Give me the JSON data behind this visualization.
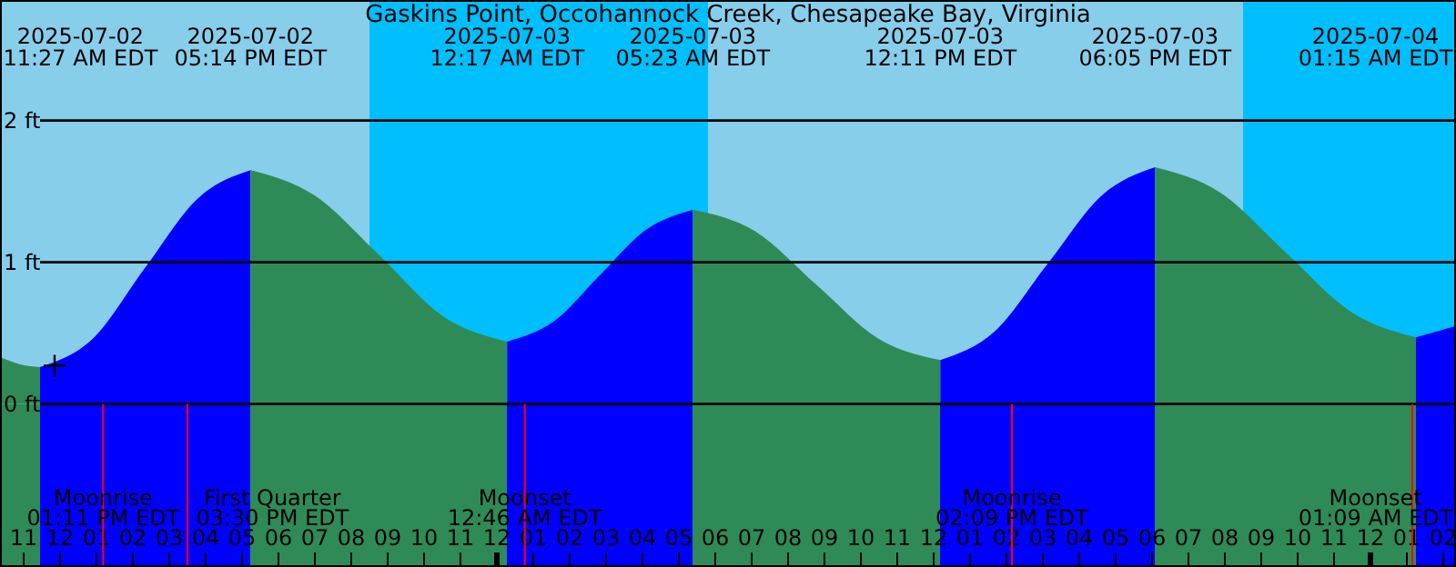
{
  "chart_data": {
    "type": "area",
    "title": "Gaskins Point, Occohannock Creek, Chesapeake Bay, Virginia",
    "xlim": [
      "2025-07-02T10:21",
      "2025-07-04T02:21"
    ],
    "ylim": [
      -1.15,
      2.85
    ],
    "yticks": [
      {
        "value": 0,
        "label": "0 ft"
      },
      {
        "value": 1,
        "label": "1 ft"
      },
      {
        "value": 2,
        "label": "2 ft"
      }
    ],
    "xticks": [
      {
        "value": "2025-07-02T11:00",
        "label": "11"
      },
      {
        "value": "2025-07-02T12:00",
        "label": "12"
      },
      {
        "value": "2025-07-02T13:00",
        "label": "01"
      },
      {
        "value": "2025-07-02T14:00",
        "label": "02"
      },
      {
        "value": "2025-07-02T15:00",
        "label": "03"
      },
      {
        "value": "2025-07-02T16:00",
        "label": "04"
      },
      {
        "value": "2025-07-02T17:00",
        "label": "05"
      },
      {
        "value": "2025-07-02T18:00",
        "label": "06"
      },
      {
        "value": "2025-07-02T19:00",
        "label": "07"
      },
      {
        "value": "2025-07-02T20:00",
        "label": "08"
      },
      {
        "value": "2025-07-02T21:00",
        "label": "09"
      },
      {
        "value": "2025-07-02T22:00",
        "label": "10"
      },
      {
        "value": "2025-07-02T23:00",
        "label": "11"
      },
      {
        "value": "2025-07-03T00:00",
        "label": "12"
      },
      {
        "value": "2025-07-03T01:00",
        "label": "01"
      },
      {
        "value": "2025-07-03T02:00",
        "label": "02"
      },
      {
        "value": "2025-07-03T03:00",
        "label": "03"
      },
      {
        "value": "2025-07-03T04:00",
        "label": "04"
      },
      {
        "value": "2025-07-03T05:00",
        "label": "05"
      },
      {
        "value": "2025-07-03T06:00",
        "label": "06"
      },
      {
        "value": "2025-07-03T07:00",
        "label": "07"
      },
      {
        "value": "2025-07-03T08:00",
        "label": "08"
      },
      {
        "value": "2025-07-03T09:00",
        "label": "09"
      },
      {
        "value": "2025-07-03T10:00",
        "label": "10"
      },
      {
        "value": "2025-07-03T11:00",
        "label": "11"
      },
      {
        "value": "2025-07-03T12:00",
        "label": "12"
      },
      {
        "value": "2025-07-03T13:00",
        "label": "01"
      },
      {
        "value": "2025-07-03T14:00",
        "label": "02"
      },
      {
        "value": "2025-07-03T15:00",
        "label": "03"
      },
      {
        "value": "2025-07-03T16:00",
        "label": "04"
      },
      {
        "value": "2025-07-03T17:00",
        "label": "05"
      },
      {
        "value": "2025-07-03T18:00",
        "label": "06"
      },
      {
        "value": "2025-07-03T19:00",
        "label": "07"
      },
      {
        "value": "2025-07-03T20:00",
        "label": "08"
      },
      {
        "value": "2025-07-03T21:00",
        "label": "09"
      },
      {
        "value": "2025-07-03T22:00",
        "label": "10"
      },
      {
        "value": "2025-07-03T23:00",
        "label": "11"
      },
      {
        "value": "2025-07-04T00:00",
        "label": "12"
      },
      {
        "value": "2025-07-04T01:00",
        "label": "01"
      },
      {
        "value": "2025-07-04T02:00",
        "label": "02"
      }
    ],
    "grid": "y",
    "bands": [
      {
        "axis": "x",
        "from": "2025-07-02T10:21",
        "to": "2025-07-02T20:30",
        "color": "#87ceeb"
      },
      {
        "axis": "x",
        "from": "2025-07-02T20:30",
        "to": "2025-07-03T05:48",
        "color": "#00bfff"
      },
      {
        "axis": "x",
        "from": "2025-07-03T05:48",
        "to": "2025-07-03T20:30",
        "color": "#87ceeb"
      },
      {
        "axis": "x",
        "from": "2025-07-03T20:30",
        "to": "2025-07-04T02:21",
        "color": "#00bfff"
      }
    ],
    "series": [
      {
        "color": "#2e8b57",
        "x": [
          "2025-07-02T10:21",
          "2025-07-02T10:54",
          "2025-07-02T11:27"
        ],
        "values": [
          0.33,
          0.28,
          0.26
        ]
      },
      {
        "color": "#0000ff",
        "x": [
          "2025-07-02T11:27",
          "2025-07-02T12:54",
          "2025-07-02T14:20",
          "2025-07-02T15:47",
          "2025-07-02T17:14"
        ],
        "values": [
          0.26,
          0.46,
          0.96,
          1.45,
          1.65
        ]
      },
      {
        "color": "#2e8b57",
        "x": [
          "2025-07-02T17:14",
          "2025-07-02T19:00",
          "2025-07-02T20:46",
          "2025-07-02T22:31",
          "2025-07-03T00:17"
        ],
        "values": [
          1.65,
          1.47,
          1.05,
          0.62,
          0.44
        ]
      },
      {
        "color": "#0000ff",
        "x": [
          "2025-07-03T00:17",
          "2025-07-03T01:33",
          "2025-07-03T02:50",
          "2025-07-03T04:06",
          "2025-07-03T05:23"
        ],
        "values": [
          0.44,
          0.58,
          0.91,
          1.23,
          1.37
        ]
      },
      {
        "color": "#2e8b57",
        "x": [
          "2025-07-03T05:23",
          "2025-07-03T07:05",
          "2025-07-03T08:47",
          "2025-07-03T10:29",
          "2025-07-03T12:11"
        ],
        "values": [
          1.37,
          1.22,
          0.84,
          0.46,
          0.31
        ]
      },
      {
        "color": "#0000ff",
        "x": [
          "2025-07-03T12:11",
          "2025-07-03T13:40",
          "2025-07-03T15:08",
          "2025-07-03T16:37",
          "2025-07-03T18:05"
        ],
        "values": [
          0.31,
          0.51,
          0.99,
          1.47,
          1.67
        ]
      },
      {
        "color": "#2e8b57",
        "x": [
          "2025-07-03T18:05",
          "2025-07-03T19:53",
          "2025-07-03T21:40",
          "2025-07-03T23:28",
          "2025-07-04T01:15"
        ],
        "values": [
          1.67,
          1.49,
          1.07,
          0.65,
          0.47
        ]
      },
      {
        "color": "#0000ff",
        "x": [
          "2025-07-04T01:15",
          "2025-07-04T02:21"
        ],
        "values": [
          0.47,
          0.55
        ]
      },
      {
        "type": "scatter",
        "marker": "cross",
        "color": "#000000",
        "x": [
          "2025-07-02T11:51"
        ],
        "values": [
          0.27
        ]
      }
    ],
    "annotations": [
      "2025-07-02\n11:27 AM EDT",
      "2025-07-02\n05:14 PM EDT",
      "2025-07-03\n12:17 AM EDT",
      "2025-07-03\n05:23 AM EDT",
      "2025-07-03\n12:11 PM EDT",
      "2025-07-03\n06:05 PM EDT",
      "2025-07-04\n01:15 AM EDT"
    ],
    "ref_lines": [
      {
        "axis": "x",
        "value": "2025-07-02T13:11",
        "label": "Moonrise\n01:11 PM EDT",
        "color": "#ff0000"
      },
      {
        "axis": "x",
        "value": "2025-07-02T15:30",
        "label": "First Quarter\n03:30 PM EDT",
        "color": "#ff0000"
      },
      {
        "axis": "x",
        "value": "2025-07-03T00:46",
        "label": "Moonset\n12:46 AM EDT",
        "color": "#ff0000"
      },
      {
        "axis": "x",
        "value": "2025-07-03T14:09",
        "label": "Moonrise\n02:09 PM EDT",
        "color": "#ff0000"
      },
      {
        "axis": "x",
        "value": "2025-07-04T01:09",
        "label": "Moonset\n01:09 AM EDT",
        "color": "#ff0000"
      }
    ]
  }
}
